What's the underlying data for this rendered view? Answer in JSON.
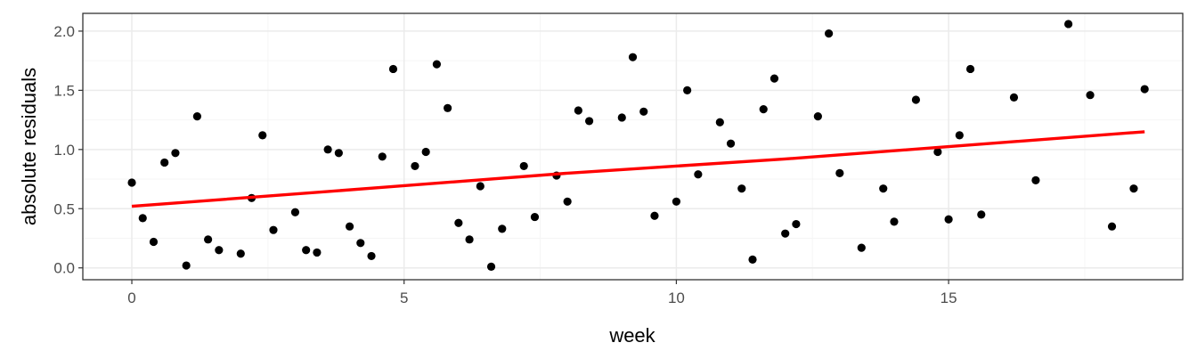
{
  "chart_data": {
    "type": "scatter",
    "title": "",
    "xlabel": "week",
    "ylabel": "absolute residuals",
    "xlim": [
      -0.9,
      19.3
    ],
    "ylim": [
      -0.1,
      2.15
    ],
    "x_ticks": [
      0,
      5,
      10,
      15
    ],
    "x_tick_labels": [
      "0",
      "5",
      "10",
      "15"
    ],
    "y_ticks": [
      0.0,
      0.5,
      1.0,
      1.5,
      2.0
    ],
    "y_tick_labels": [
      "0.0",
      "0.5",
      "1.0",
      "1.5",
      "2.0"
    ],
    "x_minor_ticks": [
      2.5,
      7.5,
      12.5,
      17.5
    ],
    "y_minor_ticks": [
      0.25,
      0.75,
      1.25,
      1.75
    ],
    "grid": true,
    "theme": "bw",
    "colors": {
      "points": "#000000",
      "trend_line": "#ff0000",
      "grid_major": "#ebebeb",
      "grid_minor": "#f5f5f5",
      "panel_border": "#333333"
    },
    "series": [
      {
        "type": "scatter",
        "x": [
          0,
          0.2,
          0.4,
          0.6,
          0.8,
          1.0,
          1.2,
          1.4,
          1.6,
          2.0,
          2.2,
          2.4,
          2.6,
          3.0,
          3.2,
          3.4,
          3.6,
          3.8,
          4.0,
          4.2,
          4.4,
          4.6,
          4.8,
          5.2,
          5.4,
          5.6,
          5.8,
          6.0,
          6.2,
          6.4,
          6.6,
          6.8,
          7.2,
          7.4,
          7.8,
          8.0,
          8.2,
          8.4,
          9.0,
          9.2,
          9.4,
          9.6,
          10.0,
          10.2,
          10.4,
          10.8,
          11.0,
          11.2,
          11.4,
          11.6,
          11.8,
          12.0,
          12.2,
          12.6,
          12.8,
          13.0,
          13.4,
          13.8,
          14.0,
          14.4,
          14.8,
          15.0,
          15.2,
          15.4,
          15.6,
          16.2,
          16.6,
          17.2,
          17.6,
          18.0,
          18.4,
          18.6
        ],
        "y": [
          0.72,
          0.42,
          0.22,
          0.89,
          0.97,
          0.02,
          1.28,
          0.24,
          0.15,
          0.12,
          0.59,
          1.12,
          0.32,
          0.47,
          0.15,
          0.13,
          1.0,
          0.97,
          0.35,
          0.21,
          0.1,
          0.94,
          1.68,
          0.86,
          0.98,
          1.72,
          1.35,
          0.38,
          0.24,
          0.69,
          0.01,
          0.33,
          0.86,
          0.43,
          0.78,
          0.56,
          1.33,
          1.24,
          1.27,
          1.78,
          1.32,
          0.44,
          0.56,
          1.5,
          0.79,
          1.23,
          1.05,
          0.67,
          0.07,
          1.34,
          1.6,
          0.29,
          0.37,
          1.28,
          1.98,
          0.8,
          0.17,
          0.67,
          0.39,
          1.42,
          0.98,
          0.41,
          1.12,
          1.68,
          0.45,
          1.44,
          0.74,
          2.06,
          1.46,
          0.35,
          0.67,
          1.51
        ]
      },
      {
        "type": "line",
        "x": [
          0,
          4.6,
          8,
          12,
          18.6
        ],
        "y": [
          0.52,
          0.68,
          0.8,
          0.92,
          1.15
        ]
      }
    ]
  }
}
